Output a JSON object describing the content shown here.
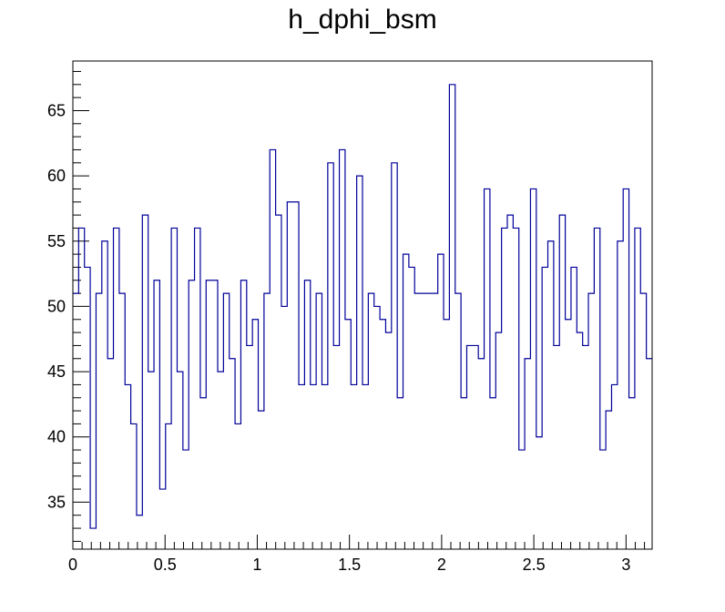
{
  "chart_data": {
    "type": "line",
    "style": "step-histogram",
    "title": "h_dphi_bsm",
    "xlabel": "",
    "ylabel": "",
    "xlim": [
      0,
      3.14159
    ],
    "ylim": [
      31.4,
      68.8
    ],
    "x_ticks": [
      0,
      0.5,
      1,
      1.5,
      2,
      2.5,
      3
    ],
    "x_tick_labels": [
      "0",
      "0.5",
      "1",
      "1.5",
      "2",
      "2.5",
      "3"
    ],
    "y_ticks": [
      35,
      40,
      45,
      50,
      55,
      60,
      65
    ],
    "y_tick_labels": [
      "35",
      "40",
      "45",
      "50",
      "55",
      "60",
      "65"
    ],
    "grid": false,
    "line_color": "#000099",
    "n_bins": 100,
    "series": [
      {
        "values": [
          51,
          56,
          53,
          33,
          51,
          55,
          46,
          56,
          51,
          44,
          41,
          34,
          57,
          45,
          52,
          36,
          41,
          56,
          45,
          39,
          52,
          56,
          43,
          52,
          52,
          45,
          51,
          46,
          41,
          52,
          47,
          49,
          42,
          51,
          62,
          57,
          50,
          58,
          58,
          44,
          52,
          44,
          51,
          44,
          61,
          47,
          62,
          49,
          44,
          60,
          44,
          51,
          50,
          49,
          48,
          61,
          43,
          54,
          53,
          51,
          51,
          51,
          51,
          54,
          49,
          67,
          51,
          43,
          47,
          47,
          46,
          59,
          43,
          48,
          56,
          57,
          56,
          39,
          46,
          59,
          40,
          53,
          55,
          47,
          57,
          49,
          53,
          48,
          47,
          51,
          56,
          39,
          42,
          44,
          55,
          59,
          43,
          56,
          51,
          46
        ]
      }
    ]
  }
}
